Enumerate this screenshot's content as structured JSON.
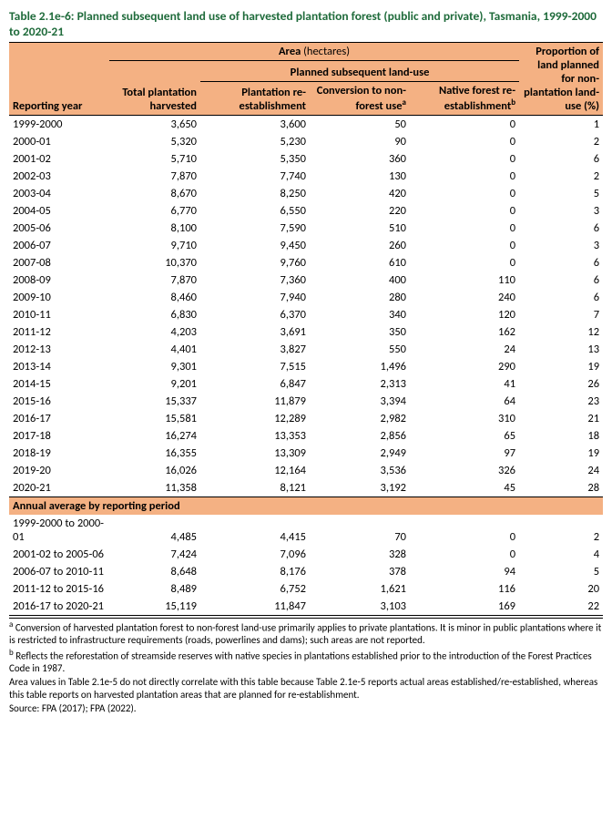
{
  "title": "Table 2.1e-6: Planned subsequent land use of harvested plantation forest (public and private), Tasmania, 1999-2000 to 2020-21",
  "headers": {
    "area_group": "Area",
    "area_unit": "(hectares)",
    "planned_group": "Planned subsequent land-use",
    "reporting_year": "Reporting year",
    "total_harvested": "Total plantation harvested",
    "re_est": "Plantation re-establishment",
    "conversion": "Conversion to non-forest use",
    "native": "Native forest re-establishment",
    "proportion": "Proportion of land planned for non-plantation land-use (%)",
    "sup_a": "a",
    "sup_b": "b"
  },
  "rows": [
    {
      "year": "1999-2000",
      "total": "3,650",
      "re": "3,600",
      "conv": "50",
      "nat": "0",
      "prop": "1"
    },
    {
      "year": "2000-01",
      "total": "5,320",
      "re": "5,230",
      "conv": "90",
      "nat": "0",
      "prop": "2"
    },
    {
      "year": "2001-02",
      "total": "5,710",
      "re": "5,350",
      "conv": "360",
      "nat": "0",
      "prop": "6"
    },
    {
      "year": "2002-03",
      "total": "7,870",
      "re": "7,740",
      "conv": "130",
      "nat": "0",
      "prop": "2"
    },
    {
      "year": "2003-04",
      "total": "8,670",
      "re": "8,250",
      "conv": "420",
      "nat": "0",
      "prop": "5"
    },
    {
      "year": "2004-05",
      "total": "6,770",
      "re": "6,550",
      "conv": "220",
      "nat": "0",
      "prop": "3"
    },
    {
      "year": "2005-06",
      "total": "8,100",
      "re": "7,590",
      "conv": "510",
      "nat": "0",
      "prop": "6"
    },
    {
      "year": "2006-07",
      "total": "9,710",
      "re": "9,450",
      "conv": "260",
      "nat": "0",
      "prop": "3"
    },
    {
      "year": "2007-08",
      "total": "10,370",
      "re": "9,760",
      "conv": "610",
      "nat": "0",
      "prop": "6"
    },
    {
      "year": "2008-09",
      "total": "7,870",
      "re": "7,360",
      "conv": "400",
      "nat": "110",
      "prop": "6"
    },
    {
      "year": "2009-10",
      "total": "8,460",
      "re": "7,940",
      "conv": "280",
      "nat": "240",
      "prop": "6"
    },
    {
      "year": "2010-11",
      "total": "6,830",
      "re": "6,370",
      "conv": "340",
      "nat": "120",
      "prop": "7"
    },
    {
      "year": "2011-12",
      "total": "4,203",
      "re": "3,691",
      "conv": "350",
      "nat": "162",
      "prop": "12"
    },
    {
      "year": "2012-13",
      "total": "4,401",
      "re": "3,827",
      "conv": "550",
      "nat": "24",
      "prop": "13"
    },
    {
      "year": "2013-14",
      "total": "9,301",
      "re": "7,515",
      "conv": "1,496",
      "nat": "290",
      "prop": "19"
    },
    {
      "year": "2014-15",
      "total": "9,201",
      "re": "6,847",
      "conv": "2,313",
      "nat": "41",
      "prop": "26"
    },
    {
      "year": "2015-16",
      "total": "15,337",
      "re": "11,879",
      "conv": "3,394",
      "nat": "64",
      "prop": "23"
    },
    {
      "year": "2016-17",
      "total": "15,581",
      "re": "12,289",
      "conv": "2,982",
      "nat": "310",
      "prop": "21"
    },
    {
      "year": "2017-18",
      "total": "16,274",
      "re": "13,353",
      "conv": "2,856",
      "nat": "65",
      "prop": "18"
    },
    {
      "year": "2018-19",
      "total": "16,355",
      "re": "13,309",
      "conv": "2,949",
      "nat": "97",
      "prop": "19"
    },
    {
      "year": "2019-20",
      "total": "16,026",
      "re": "12,164",
      "conv": "3,536",
      "nat": "326",
      "prop": "24"
    },
    {
      "year": "2020-21",
      "total": "11,358",
      "re": "8,121",
      "conv": "3,192",
      "nat": "45",
      "prop": "28"
    }
  ],
  "section_title": "Annual average by reporting period",
  "avg_rows": [
    {
      "year": "1999-2000 to 2000-01",
      "total": "4,485",
      "re": "4,415",
      "conv": "70",
      "nat": "0",
      "prop": "2"
    },
    {
      "year": "2001-02 to 2005-06",
      "total": "7,424",
      "re": "7,096",
      "conv": "328",
      "nat": "0",
      "prop": "4"
    },
    {
      "year": "2006-07 to 2010-11",
      "total": "8,648",
      "re": "8,176",
      "conv": "378",
      "nat": "94",
      "prop": "5"
    },
    {
      "year": "2011-12 to 2015-16",
      "total": "8,489",
      "re": "6,752",
      "conv": "1,621",
      "nat": "116",
      "prop": "20"
    },
    {
      "year": "2016-17 to 2020-21",
      "total": "15,119",
      "re": "11,847",
      "conv": "3,103",
      "nat": "169",
      "prop": "22"
    }
  ],
  "footnotes": {
    "a": "Conversion of harvested plantation forest to non-forest land-use primarily applies to private plantations. It is minor in public plantations where it is restricted to infrastructure requirements (roads, powerlines and dams); such areas are not reported.",
    "b": "Reflects the reforestation of streamside reserves with native species in plantations established prior to the introduction of the Forest Practices Code in 1987.",
    "note": "Area values in Table 2.1e-5 do not directly correlate with this table because Table 2.1e-5 reports actual areas established/re-established, whereas this table reports on harvested plantation areas that are planned for re-establishment.",
    "source": "Source: FPA (2017); FPA (2022)."
  },
  "colors": {
    "header_bg": "#f4b183",
    "title_color": "#1f6b3b",
    "border_color": "#000000"
  }
}
